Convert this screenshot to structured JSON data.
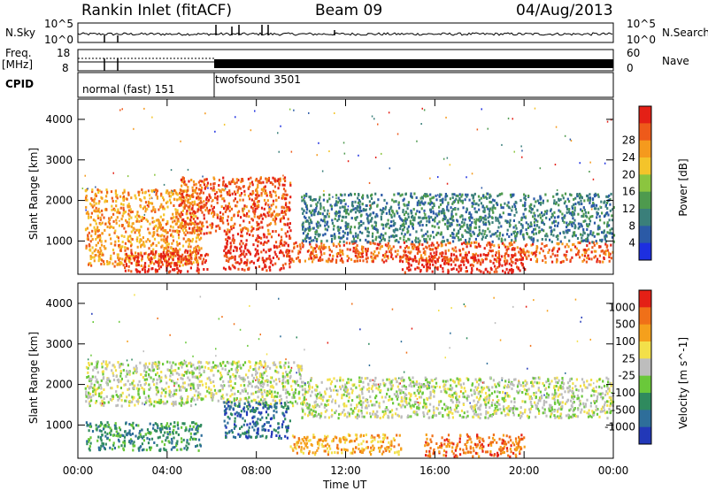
{
  "header": {
    "station": "Rankin Inlet (fitACF)",
    "beam": "Beam 09",
    "date": "04/Aug/2013"
  },
  "top_panels": {
    "nsky_label": "N.Sky",
    "nsky_tick_high": "10^5",
    "nsky_tick_low": "10^0",
    "nsearch_label": "N.Search",
    "nsearch_tick_high": "10^5",
    "nsearch_tick_low": "10^0",
    "freq_label": "Freq.",
    "freq_unit": "[MHz]",
    "freq_tick_high": "18",
    "freq_tick_low": "8",
    "nave_label": "Nave",
    "nave_tick_high": "60",
    "nave_tick_low": "0",
    "cpid_label": "CPID",
    "cpid_programs": [
      {
        "name": "normal (fast) 151",
        "start_hour": 0
      },
      {
        "name": "twofsound 3501",
        "start_hour": 6
      }
    ]
  },
  "chart_data": [
    {
      "type": "heatmap",
      "title": "",
      "quantity": "Power",
      "xlabel": "Time UT",
      "ylabel": "Slant Range [km]",
      "xlim_hours": [
        0,
        24
      ],
      "ylim_km": [
        180,
        4500
      ],
      "x_ticks": [
        "00:00",
        "04:00",
        "08:00",
        "12:00",
        "16:00",
        "20:00",
        "00:00"
      ],
      "y_ticks": [
        1000,
        2000,
        3000,
        4000
      ],
      "colorbar": {
        "label": "Power [dB]",
        "ticks": [
          "4",
          "8",
          "12",
          "16",
          "20",
          "24",
          "28"
        ],
        "colors": [
          "#1d2fe0",
          "#2b5aa6",
          "#3a7f7a",
          "#4e9a4e",
          "#8bc53f",
          "#f4c42a",
          "#f59a1d",
          "#ee5a1a",
          "#e42016"
        ]
      },
      "regions": [
        {
          "t0": 0.3,
          "t1": 5.5,
          "r0": 400,
          "r1": 2300,
          "level": 6
        },
        {
          "t0": 2.0,
          "t1": 5.8,
          "r0": 250,
          "r1": 800,
          "level": 8
        },
        {
          "t0": 4.5,
          "t1": 9.5,
          "r0": 1200,
          "r1": 2600,
          "level": 7
        },
        {
          "t0": 6.5,
          "t1": 9.5,
          "r0": 300,
          "r1": 1200,
          "level": 8
        },
        {
          "t0": 9.5,
          "t1": 24,
          "r0": 500,
          "r1": 1000,
          "level": 7
        },
        {
          "t0": 14.5,
          "t1": 20.0,
          "r0": 250,
          "r1": 700,
          "level": 8
        },
        {
          "t0": 10,
          "t1": 24,
          "r0": 1000,
          "r1": 2200,
          "level": 2
        }
      ]
    },
    {
      "type": "heatmap",
      "title": "",
      "quantity": "Velocity",
      "xlabel": "Time UT",
      "ylabel": "Slant Range [km]",
      "xlim_hours": [
        0,
        24
      ],
      "ylim_km": [
        180,
        4500
      ],
      "x_ticks": [
        "00:00",
        "04:00",
        "08:00",
        "12:00",
        "16:00",
        "20:00",
        "00:00"
      ],
      "y_ticks": [
        1000,
        2000,
        3000,
        4000
      ],
      "colorbar": {
        "label": "Velocity [m s^-1]",
        "ticks": [
          "1000",
          "500",
          "100",
          "25",
          "-25",
          "-100",
          "-500",
          "-1000"
        ],
        "colors": [
          "#2238b8",
          "#2e6e9a",
          "#2f8a5e",
          "#6ac83a",
          "#bdbdbd",
          "#f3e04a",
          "#f5a01c",
          "#f07018",
          "#e42016"
        ]
      },
      "regions": [
        {
          "t0": 0.3,
          "t1": 10.0,
          "r0": 1500,
          "r1": 2600,
          "level": 4
        },
        {
          "t0": 0.3,
          "t1": 5.5,
          "r0": 400,
          "r1": 1100,
          "level": 2
        },
        {
          "t0": 6.5,
          "t1": 9.5,
          "r0": 700,
          "r1": 1600,
          "level": 1
        },
        {
          "t0": 9.5,
          "t1": 14.5,
          "r0": 300,
          "r1": 800,
          "level": 6
        },
        {
          "t0": 15.5,
          "t1": 20.0,
          "r0": 250,
          "r1": 800,
          "level": 7
        },
        {
          "t0": 10,
          "t1": 24,
          "r0": 1200,
          "r1": 2200,
          "level": 4
        }
      ]
    }
  ]
}
